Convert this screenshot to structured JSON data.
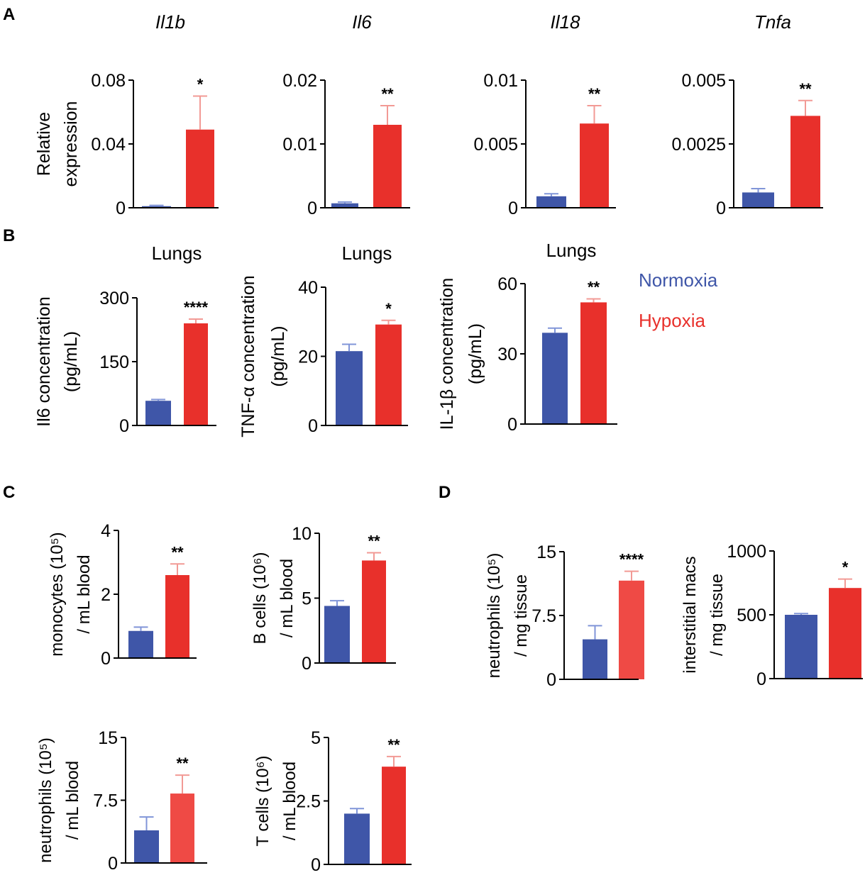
{
  "colors": {
    "normoxia": "#3F56A8",
    "hypoxia": "#E8302B",
    "hypoxia_light": "#EF4A45",
    "axis": "#000000",
    "error_blue": "#8095D8",
    "error_red": "#F29A95"
  },
  "legend": {
    "normoxia": "Normoxia",
    "hypoxia": "Hypoxia"
  },
  "panel_labels": [
    "A",
    "B",
    "C",
    "D"
  ],
  "chart_data": [
    {
      "panel": "A",
      "type": "bar",
      "title": "Il1b",
      "ylabel": [
        "Relative",
        "expression"
      ],
      "categories": [
        "Normoxia",
        "Hypoxia"
      ],
      "values": [
        0.001,
        0.049
      ],
      "errors": [
        0.0005,
        0.021
      ],
      "ylim": [
        0,
        0.08
      ],
      "yticks": [
        "0",
        "0.04",
        "0.08"
      ],
      "ytick_values": [
        0,
        0.04,
        0.08
      ],
      "significance": "*"
    },
    {
      "panel": "A",
      "type": "bar",
      "title": "Il6",
      "ylabel": [],
      "categories": [
        "Normoxia",
        "Hypoxia"
      ],
      "values": [
        0.0007,
        0.013
      ],
      "errors": [
        0.0002,
        0.003
      ],
      "ylim": [
        0,
        0.02
      ],
      "yticks": [
        "0",
        "0.01",
        "0.02"
      ],
      "ytick_values": [
        0,
        0.01,
        0.02
      ],
      "significance": "**"
    },
    {
      "panel": "A",
      "type": "bar",
      "title": "Il18",
      "ylabel": [],
      "categories": [
        "Normoxia",
        "Hypoxia"
      ],
      "values": [
        0.0009,
        0.0066
      ],
      "errors": [
        0.0002,
        0.0014
      ],
      "ylim": [
        0,
        0.01
      ],
      "yticks": [
        "0",
        "0.005",
        "0.01"
      ],
      "ytick_values": [
        0,
        0.005,
        0.01
      ],
      "significance": "**"
    },
    {
      "panel": "A",
      "type": "bar",
      "title": "Tnfa",
      "ylabel": [],
      "categories": [
        "Normoxia",
        "Hypoxia"
      ],
      "values": [
        0.0006,
        0.0036
      ],
      "errors": [
        0.00015,
        0.0006
      ],
      "ylim": [
        0,
        0.005
      ],
      "yticks": [
        "0",
        "0.0025",
        "0.005"
      ],
      "ytick_values": [
        0,
        0.0025,
        0.005
      ],
      "significance": "**"
    },
    {
      "panel": "B",
      "type": "bar",
      "title": "Lungs",
      "ylabel": [
        "Il6 concentration",
        "(pg/mL)"
      ],
      "categories": [
        "Normoxia",
        "Hypoxia"
      ],
      "values": [
        58,
        240
      ],
      "errors": [
        3,
        10
      ],
      "ylim": [
        0,
        300
      ],
      "yticks": [
        "0",
        "150",
        "300"
      ],
      "ytick_values": [
        0,
        150,
        300
      ],
      "significance": "****"
    },
    {
      "panel": "B",
      "type": "bar",
      "title": "Lungs",
      "ylabel": [
        "TNF-α concentration",
        "(pg/mL)"
      ],
      "categories": [
        "Normoxia",
        "Hypoxia"
      ],
      "values": [
        21.5,
        29.2
      ],
      "errors": [
        2.0,
        1.2
      ],
      "ylim": [
        0,
        40
      ],
      "yticks": [
        "0",
        "20",
        "40"
      ],
      "ytick_values": [
        0,
        20,
        40
      ],
      "significance": "*"
    },
    {
      "panel": "B",
      "type": "bar",
      "title": "Lungs",
      "ylabel": [
        "IL-1β concentration",
        "(pg/mL)"
      ],
      "categories": [
        "Normoxia",
        "Hypoxia"
      ],
      "values": [
        39,
        52
      ],
      "errors": [
        2,
        1.5
      ],
      "ylim": [
        0,
        60
      ],
      "yticks": [
        "0",
        "30",
        "60"
      ],
      "ytick_values": [
        0,
        30,
        60
      ],
      "significance": "**"
    },
    {
      "panel": "C",
      "type": "bar",
      "title": "",
      "ylabel": [
        "monocytes (10⁵)",
        "/ mL blood"
      ],
      "categories": [
        "Normoxia",
        "Hypoxia"
      ],
      "values": [
        0.85,
        2.6
      ],
      "errors": [
        0.12,
        0.35
      ],
      "ylim": [
        0,
        4
      ],
      "yticks": [
        "0",
        "2",
        "4"
      ],
      "ytick_values": [
        0,
        2,
        4
      ],
      "significance": "**"
    },
    {
      "panel": "C",
      "type": "bar",
      "title": "",
      "ylabel": [
        "B cells (10⁶)",
        "/ mL blood"
      ],
      "categories": [
        "Normoxia",
        "Hypoxia"
      ],
      "values": [
        4.4,
        7.9
      ],
      "errors": [
        0.4,
        0.6
      ],
      "ylim": [
        0,
        10
      ],
      "yticks": [
        "0",
        "5",
        "10"
      ],
      "ytick_values": [
        0,
        5,
        10
      ],
      "significance": "**"
    },
    {
      "panel": "D",
      "type": "bar",
      "title": "",
      "ylabel": [
        "neutrophils (10⁵)",
        "/ mg tissue"
      ],
      "categories": [
        "Normoxia",
        "Hypoxia"
      ],
      "values": [
        4.7,
        11.6
      ],
      "errors": [
        1.6,
        1.1
      ],
      "ylim": [
        0,
        15
      ],
      "yticks": [
        "0",
        "7.5",
        "15"
      ],
      "ytick_values": [
        0,
        7.5,
        15
      ],
      "significance": "****"
    },
    {
      "panel": "D",
      "type": "bar",
      "title": "",
      "ylabel": [
        "interstitial macs",
        "/ mg tissue"
      ],
      "categories": [
        "Normoxia",
        "Hypoxia"
      ],
      "values": [
        500,
        710
      ],
      "errors": [
        10,
        70
      ],
      "ylim": [
        0,
        1000
      ],
      "yticks": [
        "0",
        "500",
        "1000"
      ],
      "ytick_values": [
        0,
        500,
        1000
      ],
      "significance": "*"
    },
    {
      "panel": "C",
      "type": "bar",
      "title": "",
      "ylabel": [
        "neutrophils (10⁵)",
        "/ mL blood"
      ],
      "categories": [
        "Normoxia",
        "Hypoxia"
      ],
      "values": [
        3.9,
        8.3
      ],
      "errors": [
        1.6,
        2.2
      ],
      "ylim": [
        0,
        15
      ],
      "yticks": [
        "0",
        "7.5",
        "15"
      ],
      "ytick_values": [
        0,
        7.5,
        15
      ],
      "significance": "**"
    },
    {
      "panel": "C",
      "type": "bar",
      "title": "",
      "ylabel": [
        "T cells (10⁶)",
        "/ mL blood"
      ],
      "categories": [
        "Normoxia",
        "Hypoxia"
      ],
      "values": [
        2.0,
        3.85
      ],
      "errors": [
        0.2,
        0.4
      ],
      "ylim": [
        0,
        5
      ],
      "yticks": [
        "0",
        "2.5",
        "5"
      ],
      "ytick_values": [
        0,
        2.5,
        5
      ],
      "significance": "**"
    }
  ]
}
